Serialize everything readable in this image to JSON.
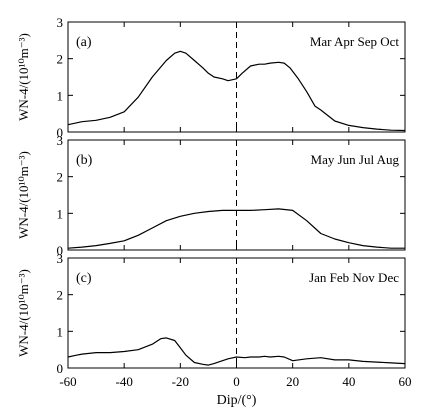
{
  "chart_data": [
    {
      "type": "line",
      "panel_label": "(a)",
      "months_label": "Mar  Apr  Sep  Oct",
      "ylabel": "WN-4/(10¹⁰m⁻³)",
      "xlim": [
        -60,
        60
      ],
      "ylim": [
        0,
        3
      ],
      "yticks": [
        "0",
        "1",
        "2",
        "3"
      ],
      "vline_x": 0,
      "x": [
        -60,
        -55,
        -50,
        -45,
        -40,
        -35,
        -30,
        -25,
        -22,
        -20,
        -18,
        -15,
        -12,
        -10,
        -8,
        -5,
        -3,
        0,
        2,
        5,
        8,
        10,
        12,
        15,
        17,
        19,
        22,
        25,
        28,
        30,
        35,
        40,
        45,
        50,
        55,
        60
      ],
      "values": [
        0.2,
        0.28,
        0.32,
        0.4,
        0.55,
        0.95,
        1.5,
        1.95,
        2.15,
        2.2,
        2.15,
        1.95,
        1.75,
        1.6,
        1.5,
        1.45,
        1.4,
        1.45,
        1.6,
        1.8,
        1.85,
        1.85,
        1.88,
        1.9,
        1.88,
        1.75,
        1.45,
        1.1,
        0.7,
        0.6,
        0.3,
        0.18,
        0.12,
        0.08,
        0.05,
        0.04
      ]
    },
    {
      "type": "line",
      "panel_label": "(b)",
      "months_label": "May  Jun  Jul  Aug",
      "ylabel": "WN-4/(10¹⁰m⁻³)",
      "xlim": [
        -60,
        60
      ],
      "ylim": [
        0,
        3
      ],
      "yticks": [
        "0",
        "1",
        "2",
        "3"
      ],
      "vline_x": 0,
      "x": [
        -60,
        -55,
        -50,
        -45,
        -40,
        -35,
        -30,
        -25,
        -20,
        -15,
        -10,
        -5,
        0,
        5,
        10,
        15,
        20,
        25,
        30,
        35,
        40,
        45,
        50,
        55,
        60
      ],
      "values": [
        0.05,
        0.08,
        0.12,
        0.18,
        0.25,
        0.4,
        0.6,
        0.8,
        0.92,
        1.0,
        1.05,
        1.08,
        1.08,
        1.08,
        1.1,
        1.12,
        1.08,
        0.8,
        0.45,
        0.3,
        0.2,
        0.12,
        0.08,
        0.05,
        0.05
      ]
    },
    {
      "type": "line",
      "panel_label": "(c)",
      "months_label": "Jan  Feb  Nov  Dec",
      "ylabel": "WN-4/(10¹⁰m⁻³)",
      "xlabel": "Dip/(°)",
      "xlim": [
        -60,
        60
      ],
      "ylim": [
        0,
        3
      ],
      "yticks": [
        "0",
        "1",
        "2",
        "3"
      ],
      "xticks": [
        "-60",
        "-40",
        "-20",
        "0",
        "20",
        "40",
        "60"
      ],
      "vline_x": 0,
      "x": [
        -60,
        -57,
        -55,
        -50,
        -45,
        -40,
        -35,
        -30,
        -27,
        -25,
        -22,
        -20,
        -18,
        -15,
        -12,
        -10,
        -8,
        -5,
        -3,
        0,
        3,
        5,
        8,
        10,
        12,
        15,
        17,
        20,
        25,
        30,
        35,
        40,
        45,
        50,
        55,
        60
      ],
      "values": [
        0.3,
        0.35,
        0.38,
        0.42,
        0.42,
        0.45,
        0.5,
        0.65,
        0.8,
        0.82,
        0.75,
        0.55,
        0.35,
        0.15,
        0.1,
        0.08,
        0.12,
        0.2,
        0.25,
        0.3,
        0.28,
        0.3,
        0.3,
        0.32,
        0.3,
        0.32,
        0.3,
        0.2,
        0.25,
        0.28,
        0.22,
        0.22,
        0.18,
        0.16,
        0.14,
        0.12
      ]
    }
  ]
}
